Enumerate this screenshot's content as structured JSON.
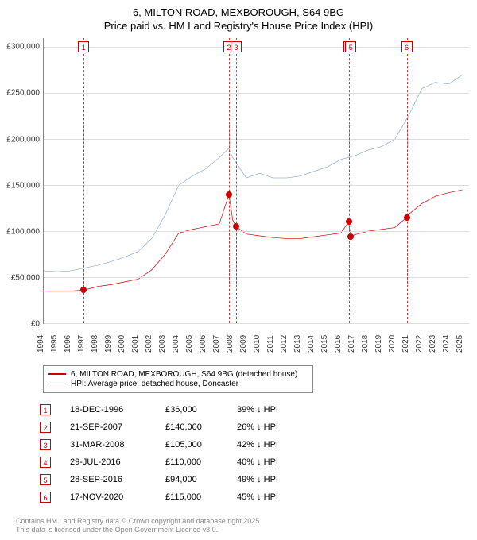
{
  "title_line1": "6, MILTON ROAD, MEXBOROUGH, S64 9BG",
  "title_line2": "Price paid vs. HM Land Registry's House Price Index (HPI)",
  "chart": {
    "type": "line",
    "background_color": "#ffffff",
    "grid_color": "#dddddd",
    "axis_color": "#888888",
    "x_range": [
      1994,
      2025.5
    ],
    "y_range": [
      0,
      310000
    ],
    "y_ticks": [
      0,
      50000,
      100000,
      150000,
      200000,
      250000,
      300000
    ],
    "y_tick_labels": [
      "£0",
      "£50,000",
      "£100,000",
      "£150,000",
      "£200,000",
      "£250,000",
      "£300,000"
    ],
    "x_ticks": [
      1994,
      1995,
      1996,
      1997,
      1998,
      1999,
      2000,
      2001,
      2002,
      2003,
      2004,
      2005,
      2006,
      2007,
      2008,
      2009,
      2010,
      2011,
      2012,
      2013,
      2014,
      2015,
      2016,
      2017,
      2018,
      2019,
      2020,
      2021,
      2022,
      2023,
      2024,
      2025
    ],
    "series": [
      {
        "name": "6, MILTON ROAD, MEXBOROUGH, S64 9BG (detached house)",
        "color": "#cc0000",
        "line_width": 2,
        "data": [
          [
            1994,
            35000
          ],
          [
            1995,
            35000
          ],
          [
            1996,
            35000
          ],
          [
            1996.96,
            36000
          ],
          [
            1997.5,
            38000
          ],
          [
            1998,
            40000
          ],
          [
            1999,
            42000
          ],
          [
            2000,
            45000
          ],
          [
            2001,
            48000
          ],
          [
            2002,
            58000
          ],
          [
            2003,
            75000
          ],
          [
            2004,
            98000
          ],
          [
            2005,
            102000
          ],
          [
            2006,
            105000
          ],
          [
            2007,
            108000
          ],
          [
            2007.72,
            140000
          ],
          [
            2008,
            112000
          ],
          [
            2008.25,
            105000
          ],
          [
            2009,
            97000
          ],
          [
            2010,
            95000
          ],
          [
            2011,
            93000
          ],
          [
            2012,
            92000
          ],
          [
            2013,
            92000
          ],
          [
            2014,
            94000
          ],
          [
            2015,
            96000
          ],
          [
            2016,
            98000
          ],
          [
            2016.58,
            110000
          ],
          [
            2016.74,
            94000
          ],
          [
            2017,
            96000
          ],
          [
            2018,
            100000
          ],
          [
            2019,
            102000
          ],
          [
            2020,
            104000
          ],
          [
            2020.88,
            115000
          ],
          [
            2021,
            118000
          ],
          [
            2022,
            130000
          ],
          [
            2023,
            138000
          ],
          [
            2024,
            142000
          ],
          [
            2025,
            145000
          ]
        ]
      },
      {
        "name": "HPI: Average price, detached house, Doncaster",
        "color": "#6b8fc9",
        "line_width": 1.5,
        "data": [
          [
            1994,
            57000
          ],
          [
            1995,
            56000
          ],
          [
            1996,
            57000
          ],
          [
            1997,
            60000
          ],
          [
            1998,
            63000
          ],
          [
            1999,
            67000
          ],
          [
            2000,
            72000
          ],
          [
            2001,
            78000
          ],
          [
            2002,
            92000
          ],
          [
            2003,
            118000
          ],
          [
            2004,
            150000
          ],
          [
            2005,
            160000
          ],
          [
            2006,
            168000
          ],
          [
            2007,
            180000
          ],
          [
            2007.7,
            190000
          ],
          [
            2008,
            180000
          ],
          [
            2009,
            158000
          ],
          [
            2010,
            163000
          ],
          [
            2011,
            158000
          ],
          [
            2012,
            158000
          ],
          [
            2013,
            160000
          ],
          [
            2014,
            165000
          ],
          [
            2015,
            170000
          ],
          [
            2016,
            178000
          ],
          [
            2017,
            182000
          ],
          [
            2018,
            188000
          ],
          [
            2019,
            192000
          ],
          [
            2020,
            200000
          ],
          [
            2021,
            225000
          ],
          [
            2022,
            255000
          ],
          [
            2023,
            262000
          ],
          [
            2024,
            260000
          ],
          [
            2025,
            270000
          ]
        ]
      }
    ],
    "markers": [
      {
        "n": "1",
        "year": 1996.96
      },
      {
        "n": "2",
        "year": 2007.72
      },
      {
        "n": "3",
        "year": 2008.25
      },
      {
        "n": "4",
        "year": 2016.58
      },
      {
        "n": "5",
        "year": 2016.74
      },
      {
        "n": "6",
        "year": 2020.88
      }
    ],
    "sale_points": [
      {
        "year": 1996.96,
        "price": 36000
      },
      {
        "year": 2007.72,
        "price": 140000
      },
      {
        "year": 2008.25,
        "price": 105000
      },
      {
        "year": 2016.58,
        "price": 110000
      },
      {
        "year": 2016.74,
        "price": 94000
      },
      {
        "year": 2020.88,
        "price": 115000
      }
    ]
  },
  "legend": {
    "rows": [
      {
        "color": "#cc0000",
        "weight": 2,
        "label": "6, MILTON ROAD, MEXBOROUGH, S64 9BG (detached house)"
      },
      {
        "color": "#6b8fc9",
        "weight": 1.5,
        "label": "HPI: Average price, detached house, Doncaster"
      }
    ]
  },
  "sales": [
    {
      "n": "1",
      "date": "18-DEC-1996",
      "price": "£36,000",
      "diff": "39% ↓ HPI"
    },
    {
      "n": "2",
      "date": "21-SEP-2007",
      "price": "£140,000",
      "diff": "26% ↓ HPI"
    },
    {
      "n": "3",
      "date": "31-MAR-2008",
      "price": "£105,000",
      "diff": "42% ↓ HPI"
    },
    {
      "n": "4",
      "date": "29-JUL-2016",
      "price": "£110,000",
      "diff": "40% ↓ HPI"
    },
    {
      "n": "5",
      "date": "28-SEP-2016",
      "price": "£94,000",
      "diff": "49% ↓ HPI"
    },
    {
      "n": "6",
      "date": "17-NOV-2020",
      "price": "£115,000",
      "diff": "45% ↓ HPI"
    }
  ],
  "footer_line1": "Contains HM Land Registry data © Crown copyright and database right 2025.",
  "footer_line2": "This data is licensed under the Open Government Licence v3.0."
}
